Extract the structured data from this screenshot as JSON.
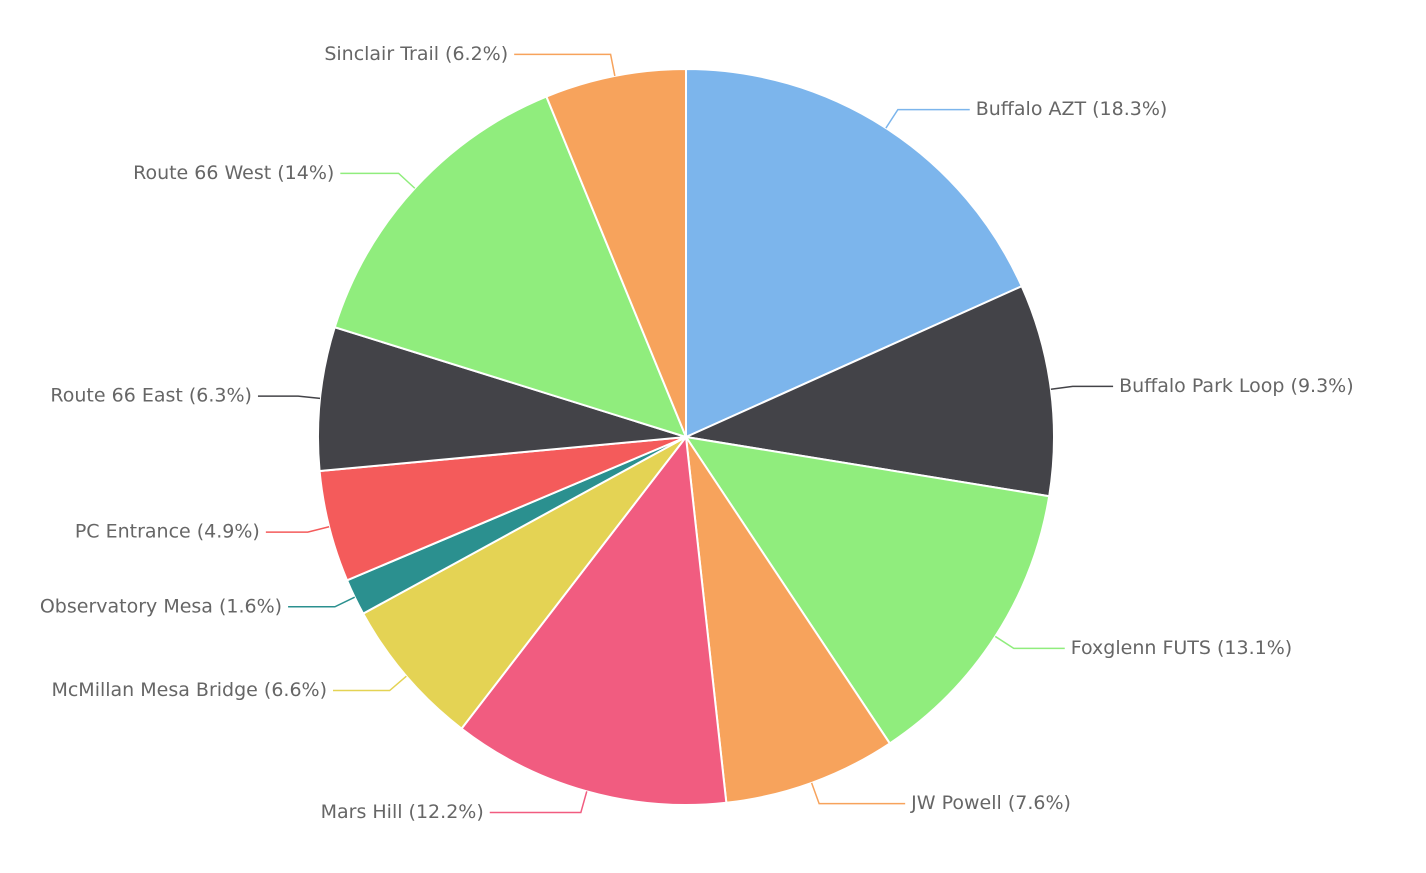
{
  "chart_data": {
    "type": "pie",
    "title": "",
    "label_format": "{name} ({value}%)",
    "slices": [
      {
        "name": "Buffalo AZT",
        "value": 18.3,
        "color": "#7cb5ec"
      },
      {
        "name": "Buffalo Park Loop",
        "value": 9.3,
        "color": "#434348"
      },
      {
        "name": "Foxglenn FUTS",
        "value": 13.1,
        "color": "#90ed7d"
      },
      {
        "name": "JW Powell",
        "value": 7.6,
        "color": "#f7a35c"
      },
      {
        "name": "Mars Hill",
        "value": 12.2,
        "color": "#f15c80"
      },
      {
        "name": "McMillan Mesa Bridge",
        "value": 6.6,
        "color": "#e4d354"
      },
      {
        "name": "Observatory Mesa",
        "value": 1.6,
        "color": "#2b908f"
      },
      {
        "name": "PC Entrance",
        "value": 4.9,
        "color": "#f45b5b"
      },
      {
        "name": "Route 66 East",
        "value": 6.3,
        "color": "#434348"
      },
      {
        "name": "Route 66 West",
        "value": 14,
        "color": "#90ed7d"
      },
      {
        "name": "Sinclair Trail",
        "value": 6.2,
        "color": "#f7a35c"
      }
    ]
  }
}
